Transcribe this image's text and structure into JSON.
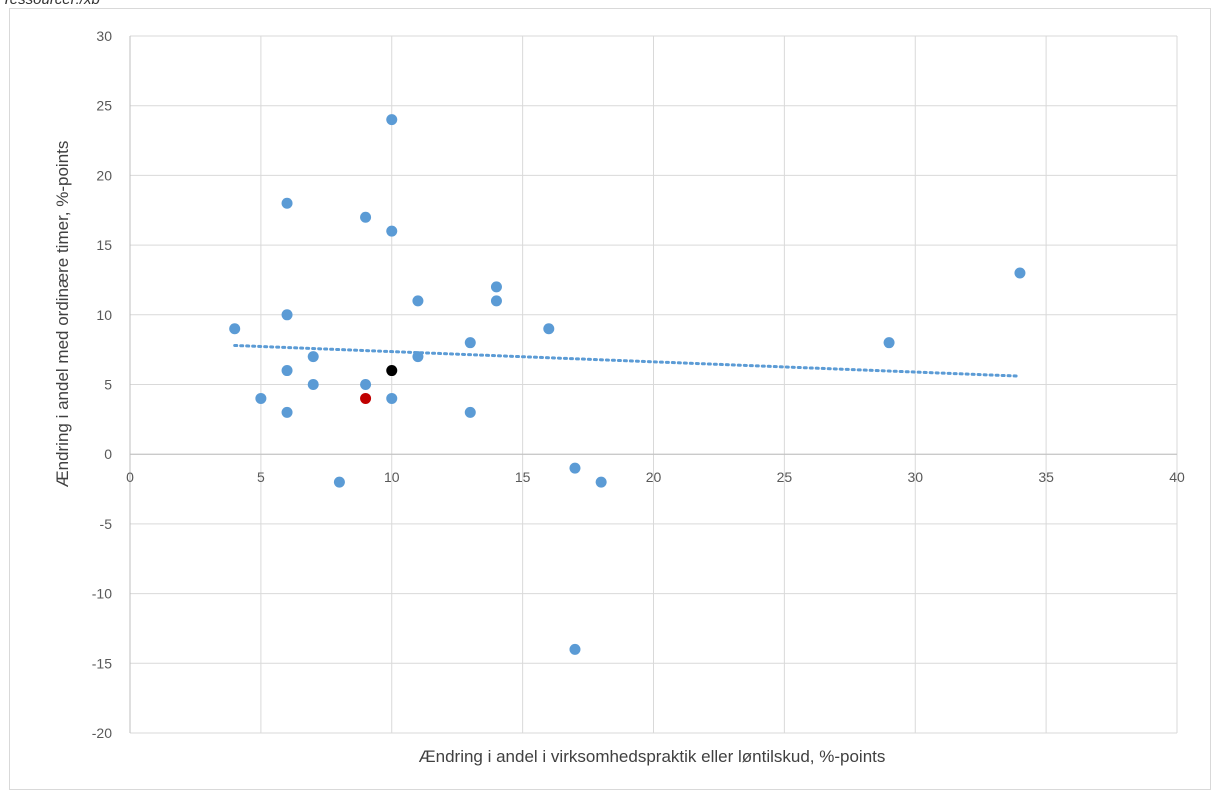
{
  "source_note": "Tessourcer:/xb",
  "chart_data": {
    "type": "scatter",
    "xlabel": "Ændring i andel i virksomhedspraktik eller løntilskud, %-points",
    "ylabel": "Ændring i andel med ordinære timer, %-points",
    "xlim": [
      0,
      40
    ],
    "ylim": [
      -20,
      30
    ],
    "x_ticks": [
      0,
      5,
      10,
      15,
      20,
      25,
      30,
      35,
      40
    ],
    "y_ticks": [
      -20,
      -15,
      -10,
      -5,
      0,
      5,
      10,
      15,
      20,
      25,
      30
    ],
    "grid": true,
    "points": [
      {
        "x": 4,
        "y": 9
      },
      {
        "x": 5,
        "y": 4
      },
      {
        "x": 6,
        "y": 18
      },
      {
        "x": 6,
        "y": 10
      },
      {
        "x": 6,
        "y": 6
      },
      {
        "x": 6,
        "y": 3
      },
      {
        "x": 7,
        "y": 7
      },
      {
        "x": 7,
        "y": 5
      },
      {
        "x": 8,
        "y": -2
      },
      {
        "x": 9,
        "y": 17
      },
      {
        "x": 9,
        "y": 5
      },
      {
        "x": 10,
        "y": 24
      },
      {
        "x": 10,
        "y": 16
      },
      {
        "x": 10,
        "y": 4
      },
      {
        "x": 11,
        "y": 11
      },
      {
        "x": 11,
        "y": 7
      },
      {
        "x": 13,
        "y": 8
      },
      {
        "x": 13,
        "y": 3
      },
      {
        "x": 14,
        "y": 12
      },
      {
        "x": 14,
        "y": 11
      },
      {
        "x": 16,
        "y": 9
      },
      {
        "x": 17,
        "y": -1
      },
      {
        "x": 17,
        "y": -14
      },
      {
        "x": 18,
        "y": -2
      },
      {
        "x": 29,
        "y": 8
      },
      {
        "x": 34,
        "y": 13
      },
      {
        "x": 9,
        "y": 4,
        "color": "#c00000"
      },
      {
        "x": 10,
        "y": 6,
        "color": "#000000"
      }
    ],
    "trendline": {
      "x": [
        4,
        34
      ],
      "y": [
        7.8,
        5.6
      ],
      "style": "dotted"
    },
    "colors": {
      "points": "#5b9bd5",
      "trendline": "#5b9bd5",
      "grid": "#d9d9d9",
      "axis": "#bfbfbf"
    }
  }
}
